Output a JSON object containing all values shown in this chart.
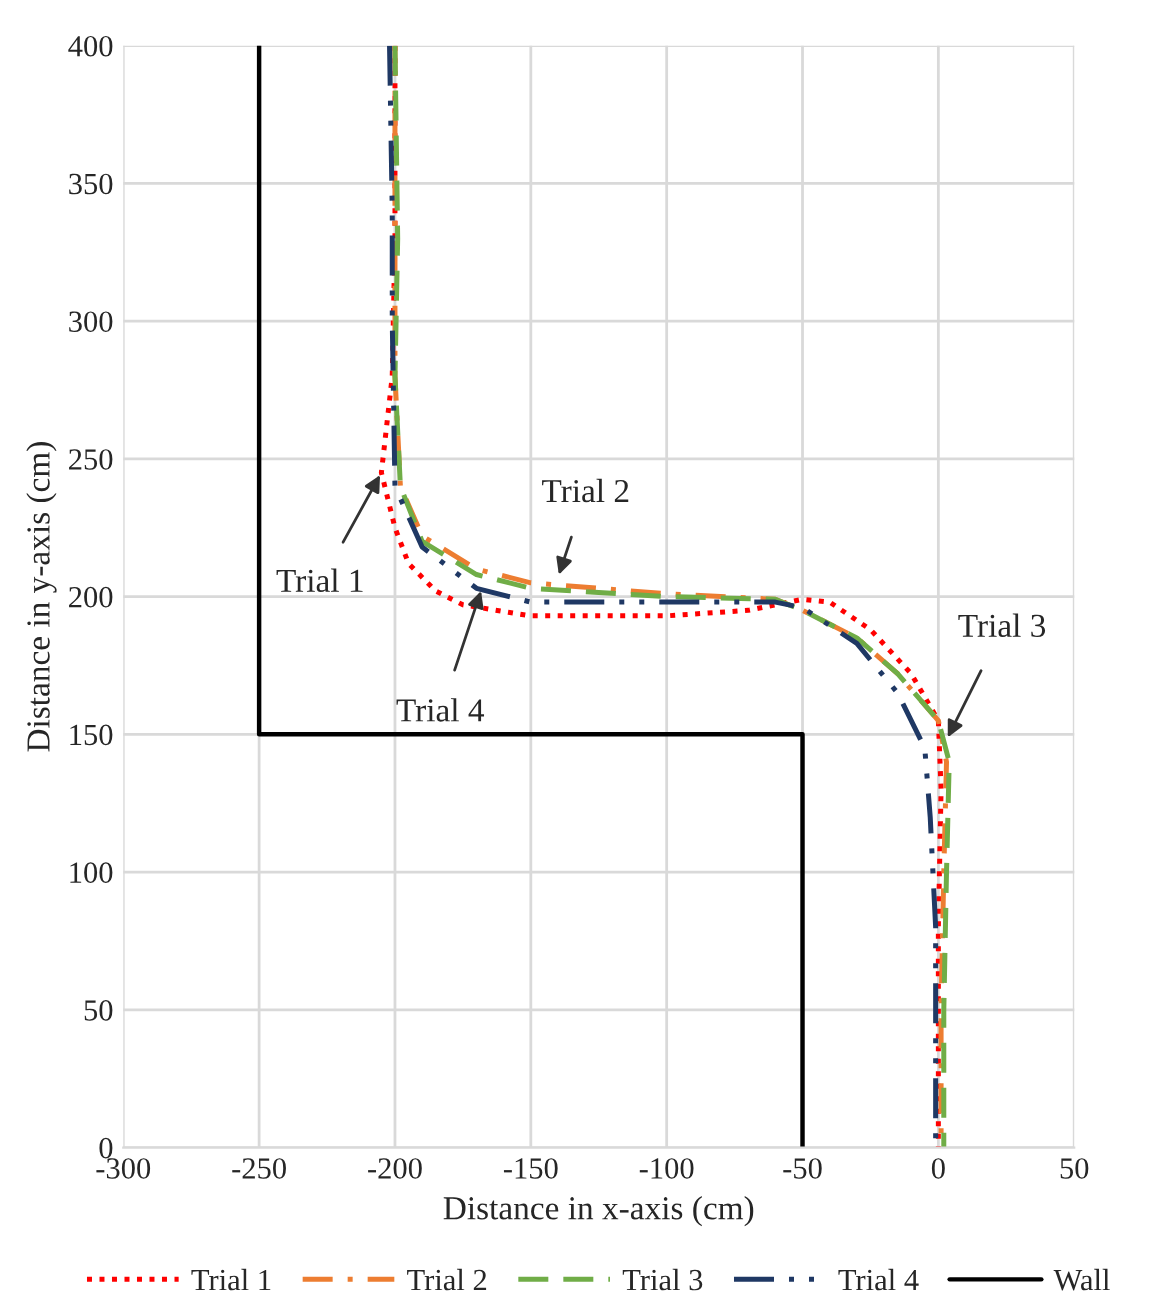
{
  "chart_data": {
    "type": "line",
    "xlabel": "Distance in x-axis (cm)",
    "ylabel": "Distance in y-axis (cm)",
    "xlim": [
      -300,
      50
    ],
    "xticks": [
      -300,
      -250,
      -200,
      -150,
      -100,
      -50,
      0,
      50
    ],
    "ylim": [
      0,
      400
    ],
    "yticks": [
      0,
      50,
      100,
      150,
      200,
      250,
      300,
      350,
      400
    ],
    "grid": true,
    "legend": "bottom",
    "series": [
      {
        "name": "Trial 1",
        "color": "#ff0000",
        "line_style": "dotted",
        "x": [
          -200,
          -200,
          -201,
          -205,
          -200,
          -195,
          -185,
          -175,
          -150,
          -125,
          -100,
          -70,
          -50,
          -40,
          -25,
          -10,
          0,
          1,
          0,
          0
        ],
        "values": [
          400,
          330,
          280,
          245,
          225,
          212,
          202,
          197,
          193,
          193,
          193,
          195,
          199,
          198,
          188,
          172,
          155,
          130,
          80,
          0
        ]
      },
      {
        "name": "Trial 2",
        "color": "#ed7d31",
        "line_style": "dashdot",
        "x": [
          -200,
          -200,
          -200,
          -198,
          -190,
          -170,
          -150,
          -100,
          -60,
          -50,
          -30,
          -15,
          0,
          3,
          2,
          1,
          1
        ],
        "values": [
          400,
          330,
          280,
          240,
          222,
          210,
          205,
          201,
          199,
          195,
          185,
          172,
          155,
          140,
          100,
          50,
          0
        ]
      },
      {
        "name": "Trial 3",
        "color": "#70ad47",
        "line_style": "dashed",
        "x": [
          -200,
          -199,
          -200,
          -198,
          -190,
          -170,
          -150,
          -100,
          -60,
          -50,
          -30,
          -15,
          0,
          4,
          3,
          2,
          2
        ],
        "values": [
          400,
          330,
          280,
          240,
          220,
          208,
          203,
          200,
          199,
          195,
          185,
          172,
          155,
          140,
          100,
          50,
          0
        ]
      },
      {
        "name": "Trial 4",
        "color": "#1f3864",
        "line_style": "dashdotdot",
        "x": [
          -202,
          -201,
          -201,
          -200,
          -190,
          -170,
          -150,
          -100,
          -60,
          -50,
          -30,
          -15,
          -5,
          -3,
          -1,
          -1
        ],
        "values": [
          400,
          340,
          300,
          240,
          218,
          203,
          198,
          198,
          198,
          196,
          183,
          165,
          145,
          120,
          80,
          0
        ]
      },
      {
        "name": "Wall",
        "color": "#000000",
        "line_style": "solid",
        "x": [
          -250,
          -250,
          -50,
          -50
        ],
        "values": [
          400,
          150,
          150,
          0
        ]
      }
    ],
    "annotations": [
      {
        "text": "Trial 1",
        "x": -205,
        "y": 245
      },
      {
        "text": "Trial 2",
        "x": -140,
        "y": 207
      },
      {
        "text": "Trial 3",
        "x": 3,
        "y": 148
      },
      {
        "text": "Trial 4",
        "x": -168,
        "y": 203
      }
    ]
  }
}
